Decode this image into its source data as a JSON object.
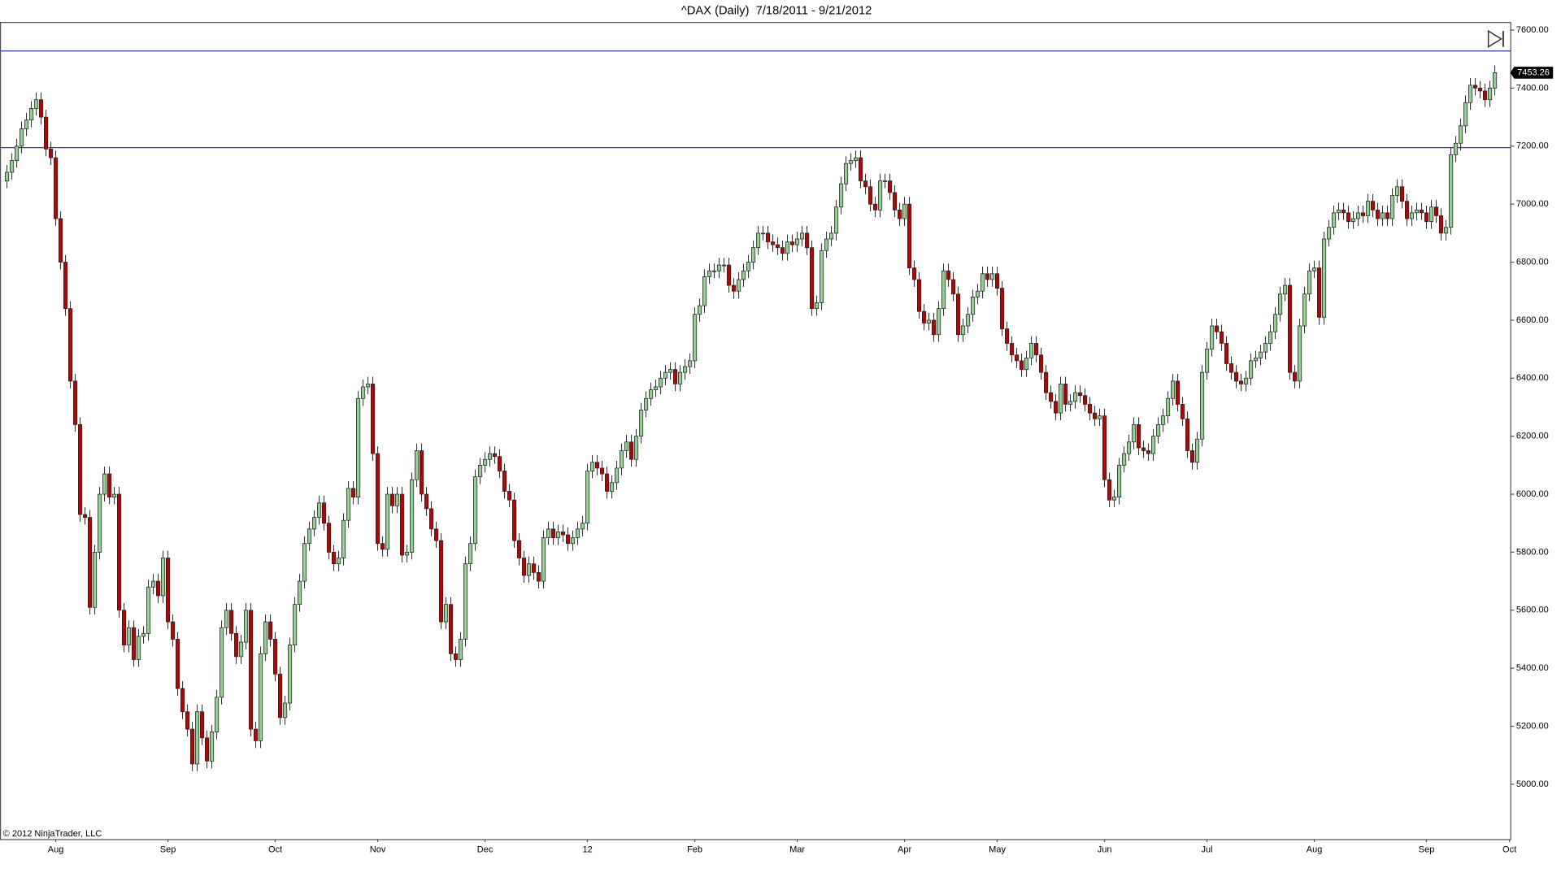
{
  "chart_data": {
    "type": "candlestick",
    "title": "^DAX (Daily)  7/18/2011 - 9/21/2012",
    "copyright": "© 2012 NinjaTrader, LLC",
    "up_color": "#8fd18f",
    "down_color": "#c00000",
    "hline_color": "#3333cc",
    "hlines": [
      7528,
      7195
    ],
    "ylim": [
      4811,
      7628
    ],
    "yticks": [
      {
        "value": 5000,
        "label": "5000.00"
      },
      {
        "value": 5200,
        "label": "5200.00"
      },
      {
        "value": 5400,
        "label": "5400.00"
      },
      {
        "value": 5600,
        "label": "5600.00"
      },
      {
        "value": 5800,
        "label": "5800.00"
      },
      {
        "value": 6000,
        "label": "6000.00"
      },
      {
        "value": 6200,
        "label": "6200.00"
      },
      {
        "value": 6400,
        "label": "6400.00"
      },
      {
        "value": 6600,
        "label": "6600.00"
      },
      {
        "value": 6800,
        "label": "6800.00"
      },
      {
        "value": 7000,
        "label": "7000.00"
      },
      {
        "value": 7200,
        "label": "7200.00"
      },
      {
        "value": 7400,
        "label": "7400.00"
      },
      {
        "value": 7600,
        "label": "7600.00"
      }
    ],
    "categories": [
      null,
      null,
      null,
      null,
      null,
      null,
      null,
      null,
      null,
      null,
      "Aug",
      null,
      null,
      null,
      null,
      null,
      null,
      null,
      null,
      null,
      null,
      null,
      null,
      null,
      null,
      null,
      null,
      null,
      null,
      null,
      null,
      null,
      null,
      "Sep",
      null,
      null,
      null,
      null,
      null,
      null,
      null,
      null,
      null,
      null,
      null,
      null,
      null,
      null,
      null,
      null,
      null,
      null,
      null,
      null,
      null,
      "Oct",
      null,
      null,
      null,
      null,
      null,
      null,
      null,
      null,
      null,
      null,
      null,
      null,
      null,
      null,
      null,
      null,
      null,
      null,
      null,
      null,
      "Nov",
      null,
      null,
      null,
      null,
      null,
      null,
      null,
      null,
      null,
      null,
      null,
      null,
      null,
      null,
      null,
      null,
      null,
      null,
      null,
      null,
      null,
      "Dec",
      null,
      null,
      null,
      null,
      null,
      null,
      null,
      null,
      null,
      null,
      null,
      null,
      null,
      null,
      null,
      null,
      null,
      null,
      null,
      null,
      "12",
      null,
      null,
      null,
      null,
      null,
      null,
      null,
      null,
      null,
      null,
      null,
      null,
      null,
      null,
      null,
      null,
      null,
      null,
      null,
      null,
      null,
      "Feb",
      null,
      null,
      null,
      null,
      null,
      null,
      null,
      null,
      null,
      null,
      null,
      null,
      null,
      null,
      null,
      null,
      null,
      null,
      null,
      null,
      "Mar",
      null,
      null,
      null,
      null,
      null,
      null,
      null,
      null,
      null,
      null,
      null,
      null,
      null,
      null,
      null,
      null,
      null,
      null,
      null,
      null,
      null,
      "Apr",
      null,
      null,
      null,
      null,
      null,
      null,
      null,
      null,
      null,
      null,
      null,
      null,
      null,
      null,
      null,
      null,
      null,
      null,
      "May",
      null,
      null,
      null,
      null,
      null,
      null,
      null,
      null,
      null,
      null,
      null,
      null,
      null,
      null,
      null,
      null,
      null,
      null,
      null,
      null,
      null,
      "Jun",
      null,
      null,
      null,
      null,
      null,
      null,
      null,
      null,
      null,
      null,
      null,
      null,
      null,
      null,
      null,
      null,
      null,
      null,
      null,
      null,
      "Jul",
      null,
      null,
      null,
      null,
      null,
      null,
      null,
      null,
      null,
      null,
      null,
      null,
      null,
      null,
      null,
      null,
      null,
      null,
      null,
      null,
      null,
      "Aug",
      null,
      null,
      null,
      null,
      null,
      null,
      null,
      null,
      null,
      null,
      null,
      null,
      null,
      null,
      null,
      null,
      null,
      null,
      null,
      null,
      null,
      null,
      "Sep",
      null,
      null,
      null,
      null,
      null,
      null,
      null,
      null,
      null,
      null,
      null,
      null,
      null,
      null,
      null,
      null,
      "Oct"
    ],
    "open": [
      7080,
      7110,
      7150,
      7200,
      7260,
      7290,
      7330,
      7360,
      7300,
      7190,
      7160,
      6950,
      6800,
      6640,
      6390,
      6240,
      5930,
      5920,
      5610,
      5800,
      6000,
      6070,
      5990,
      6000,
      5600,
      5480,
      5540,
      5430,
      5510,
      5520,
      5680,
      5700,
      5650,
      5780,
      5560,
      5500,
      5330,
      5250,
      5190,
      5070,
      5250,
      5160,
      5080,
      5180,
      5300,
      5540,
      5600,
      5520,
      5440,
      5490,
      5600,
      5190,
      5150,
      5450,
      5560,
      5500,
      5380,
      5230,
      5280,
      5480,
      5620,
      5700,
      5830,
      5880,
      5920,
      5970,
      5900,
      5800,
      5760,
      5780,
      5910,
      6020,
      5990,
      6330,
      6370,
      6380,
      6140,
      5830,
      5810,
      6000,
      5960,
      6000,
      5790,
      5800,
      6050,
      6150,
      6000,
      5950,
      5880,
      5840,
      5560,
      5620,
      5450,
      5430,
      5500,
      5760,
      5830,
      6060,
      6100,
      6120,
      6140,
      6130,
      6080,
      6010,
      5980,
      5840,
      5780,
      5720,
      5760,
      5730,
      5700,
      5850,
      5880,
      5850,
      5870,
      5860,
      5830,
      5850,
      5880,
      5900,
      6080,
      6110,
      6090,
      6070,
      6010,
      6040,
      6090,
      6150,
      6180,
      6120,
      6200,
      6290,
      6330,
      6360,
      6370,
      6400,
      6420,
      6430,
      6380,
      6420,
      6440,
      6460,
      6620,
      6650,
      6750,
      6770,
      6770,
      6790,
      6790,
      6720,
      6700,
      6740,
      6770,
      6800,
      6850,
      6900,
      6900,
      6870,
      6860,
      6850,
      6830,
      6870,
      6860,
      6880,
      6900,
      6850,
      6640,
      6660,
      6840,
      6880,
      6900,
      6990,
      7070,
      7140,
      7150,
      7160,
      7080,
      7060,
      7000,
      6980,
      7080,
      7080,
      7040,
      6980,
      6950,
      7000,
      6780,
      6740,
      6630,
      6590,
      6600,
      6550,
      6640,
      6770,
      6740,
      6690,
      6550,
      6580,
      6620,
      6680,
      6700,
      6760,
      6740,
      6760,
      6710,
      6570,
      6520,
      6480,
      6460,
      6430,
      6470,
      6520,
      6480,
      6420,
      6350,
      6320,
      6280,
      6380,
      6310,
      6320,
      6350,
      6340,
      6310,
      6280,
      6260,
      6270,
      6050,
      5980,
      5990,
      6100,
      6140,
      6180,
      6240,
      6160,
      6150,
      6140,
      6200,
      6240,
      6270,
      6330,
      6390,
      6310,
      6260,
      6150,
      6110,
      6190,
      6420,
      6500,
      6580,
      6560,
      6520,
      6450,
      6420,
      6390,
      6380,
      6400,
      6460,
      6470,
      6490,
      6520,
      6560,
      6620,
      6690,
      6720,
      6420,
      6390,
      6580,
      6690,
      6770,
      6780,
      6610,
      6880,
      6920,
      6970,
      6980,
      6970,
      6940,
      6950,
      6970,
      6960,
      7010,
      6980,
      6950,
      6970,
      6950,
      7030,
      7060,
      7010,
      6950,
      6970,
      6980,
      6970,
      6940,
      6990,
      6960,
      6900,
      6920,
      7170,
      7210,
      7270,
      7350,
      7410,
      7400,
      7390,
      7360,
      7400,
      null,
      null,
      null
    ],
    "high": [
      7135,
      7175,
      7225,
      7285,
      7315,
      7355,
      7385,
      7385,
      7325,
      7215,
      7185,
      6975,
      6825,
      6665,
      6415,
      6265,
      5955,
      5945,
      5825,
      6025,
      6095,
      6095,
      6025,
      6025,
      5625,
      5565,
      5565,
      5535,
      5545,
      5705,
      5725,
      5725,
      5805,
      5805,
      5585,
      5525,
      5355,
      5275,
      5215,
      5275,
      5275,
      5185,
      5205,
      5325,
      5565,
      5625,
      5625,
      5545,
      5515,
      5625,
      5625,
      5215,
      5475,
      5585,
      5585,
      5525,
      5405,
      5305,
      5505,
      5645,
      5725,
      5855,
      5905,
      5945,
      5995,
      5995,
      5925,
      5825,
      5805,
      5935,
      6045,
      6045,
      6355,
      6395,
      6405,
      6405,
      6165,
      5855,
      6025,
      6025,
      6025,
      6025,
      5825,
      6075,
      6175,
      6175,
      6025,
      5975,
      5905,
      5865,
      5645,
      5645,
      5475,
      5525,
      5785,
      5855,
      6085,
      6125,
      6145,
      6165,
      6165,
      6155,
      6105,
      6035,
      6005,
      5865,
      5805,
      5785,
      5785,
      5755,
      5875,
      5905,
      5905,
      5895,
      5895,
      5885,
      5875,
      5905,
      5925,
      6105,
      6135,
      6135,
      6115,
      6095,
      6065,
      6115,
      6175,
      6205,
      6205,
      6225,
      6315,
      6355,
      6385,
      6395,
      6425,
      6445,
      6455,
      6455,
      6445,
      6465,
      6485,
      6645,
      6675,
      6775,
      6795,
      6795,
      6815,
      6815,
      6815,
      6745,
      6765,
      6795,
      6825,
      6875,
      6925,
      6925,
      6925,
      6895,
      6885,
      6875,
      6895,
      6895,
      6905,
      6925,
      6925,
      6875,
      6685,
      6865,
      6905,
      6925,
      7015,
      7095,
      7165,
      7175,
      7185,
      7185,
      7105,
      7085,
      7025,
      7105,
      7105,
      7105,
      7065,
      7005,
      7025,
      7025,
      6805,
      6765,
      6655,
      6625,
      6625,
      6665,
      6795,
      6795,
      6765,
      6715,
      6605,
      6645,
      6705,
      6725,
      6785,
      6785,
      6785,
      6785,
      6735,
      6595,
      6545,
      6505,
      6485,
      6495,
      6545,
      6545,
      6505,
      6445,
      6375,
      6345,
      6405,
      6405,
      6345,
      6375,
      6375,
      6365,
      6335,
      6305,
      6295,
      6295,
      6075,
      6015,
      6125,
      6165,
      6205,
      6265,
      6265,
      6185,
      6175,
      6225,
      6265,
      6295,
      6355,
      6415,
      6415,
      6335,
      6285,
      6175,
      6215,
      6445,
      6525,
      6605,
      6605,
      6585,
      6545,
      6475,
      6445,
      6415,
      6425,
      6485,
      6495,
      6515,
      6545,
      6585,
      6645,
      6715,
      6745,
      6745,
      6445,
      6605,
      6715,
      6795,
      6805,
      6805,
      6905,
      6945,
      6995,
      7005,
      7005,
      6995,
      6975,
      6995,
      6995,
      7035,
      7035,
      7005,
      6995,
      6995,
      7055,
      7085,
      7085,
      7035,
      6995,
      7005,
      7005,
      6995,
      7015,
      7015,
      6985,
      6945,
      7195,
      7235,
      7295,
      7375,
      7435,
      7435,
      7425,
      7415,
      7425,
      7478,
      null,
      null,
      null
    ],
    "low": [
      7055,
      7085,
      7125,
      7175,
      7235,
      7265,
      7305,
      7275,
      7165,
      7135,
      6925,
      6775,
      6615,
      6365,
      6215,
      5905,
      5895,
      5585,
      5585,
      5775,
      5975,
      5965,
      5965,
      5575,
      5455,
      5455,
      5405,
      5405,
      5485,
      5495,
      5655,
      5625,
      5625,
      5535,
      5475,
      5305,
      5225,
      5165,
      5045,
      5045,
      5135,
      5055,
      5055,
      5155,
      5275,
      5515,
      5495,
      5415,
      5415,
      5465,
      5165,
      5125,
      5125,
      5425,
      5475,
      5355,
      5205,
      5205,
      5255,
      5455,
      5595,
      5675,
      5805,
      5855,
      5895,
      5875,
      5775,
      5735,
      5735,
      5755,
      5885,
      5965,
      5965,
      6305,
      6345,
      6115,
      5805,
      5785,
      5785,
      5935,
      5935,
      5765,
      5765,
      5775,
      6025,
      5975,
      5925,
      5855,
      5815,
      5535,
      5535,
      5425,
      5405,
      5405,
      5475,
      5735,
      5805,
      6035,
      6075,
      6095,
      6105,
      6055,
      5985,
      5955,
      5815,
      5755,
      5695,
      5695,
      5705,
      5675,
      5675,
      5825,
      5825,
      5825,
      5835,
      5805,
      5805,
      5825,
      5855,
      5875,
      6055,
      6065,
      6045,
      5985,
      5985,
      6015,
      6065,
      6125,
      6095,
      6095,
      6175,
      6265,
      6305,
      6335,
      6345,
      6375,
      6395,
      6355,
      6355,
      6395,
      6415,
      6435,
      6595,
      6625,
      6725,
      6745,
      6745,
      6765,
      6695,
      6675,
      6675,
      6715,
      6745,
      6775,
      6825,
      6875,
      6845,
      6835,
      6825,
      6805,
      6805,
      6835,
      6835,
      6855,
      6825,
      6615,
      6615,
      6635,
      6815,
      6855,
      6875,
      6965,
      7045,
      7115,
      7125,
      7055,
      7035,
      6975,
      6955,
      6955,
      7055,
      7015,
      6955,
      6925,
      6925,
      6755,
      6715,
      6605,
      6565,
      6565,
      6525,
      6525,
      6615,
      6715,
      6665,
      6525,
      6525,
      6555,
      6595,
      6655,
      6675,
      6715,
      6715,
      6685,
      6545,
      6495,
      6455,
      6435,
      6405,
      6405,
      6445,
      6455,
      6395,
      6325,
      6295,
      6255,
      6255,
      6285,
      6285,
      6295,
      6315,
      6285,
      6255,
      6235,
      6235,
      6025,
      5955,
      5955,
      5965,
      6075,
      6115,
      6155,
      6135,
      6125,
      6115,
      6115,
      6175,
      6215,
      6245,
      6305,
      6285,
      6235,
      6125,
      6085,
      6085,
      6165,
      6395,
      6475,
      6535,
      6495,
      6425,
      6395,
      6365,
      6355,
      6355,
      6375,
      6435,
      6445,
      6465,
      6495,
      6535,
      6595,
      6665,
      6395,
      6365,
      6365,
      6555,
      6665,
      6745,
      6585,
      6585,
      6855,
      6895,
      6945,
      6945,
      6915,
      6915,
      6925,
      6935,
      6935,
      6955,
      6925,
      6925,
      6925,
      6925,
      7005,
      6985,
      6925,
      6925,
      6945,
      6945,
      6915,
      6915,
      6935,
      6875,
      6875,
      6895,
      7145,
      7185,
      7245,
      7325,
      7375,
      7365,
      7335,
      7335,
      7375,
      null,
      null,
      null
    ],
    "close": [
      7110,
      7150,
      7200,
      7260,
      7290,
      7330,
      7360,
      7300,
      7190,
      7160,
      6950,
      6800,
      6640,
      6390,
      6240,
      5930,
      5920,
      5610,
      5800,
      6000,
      6070,
      5990,
      6000,
      5600,
      5480,
      5540,
      5430,
      5510,
      5520,
      5680,
      5700,
      5650,
      5780,
      5560,
      5500,
      5330,
      5250,
      5190,
      5070,
      5250,
      5160,
      5080,
      5180,
      5300,
      5540,
      5600,
      5520,
      5440,
      5490,
      5600,
      5190,
      5150,
      5450,
      5560,
      5500,
      5380,
      5230,
      5280,
      5480,
      5620,
      5700,
      5830,
      5880,
      5920,
      5970,
      5900,
      5800,
      5760,
      5780,
      5910,
      6020,
      5990,
      6330,
      6370,
      6380,
      6140,
      5830,
      5810,
      6000,
      5960,
      6000,
      5790,
      5800,
      6050,
      6150,
      6000,
      5950,
      5880,
      5840,
      5560,
      5620,
      5450,
      5430,
      5500,
      5760,
      5830,
      6060,
      6100,
      6120,
      6140,
      6130,
      6080,
      6010,
      5980,
      5840,
      5780,
      5720,
      5760,
      5730,
      5700,
      5850,
      5880,
      5850,
      5870,
      5860,
      5830,
      5850,
      5880,
      5900,
      6080,
      6110,
      6090,
      6070,
      6010,
      6040,
      6090,
      6150,
      6180,
      6120,
      6200,
      6290,
      6330,
      6360,
      6370,
      6400,
      6420,
      6430,
      6380,
      6420,
      6440,
      6460,
      6620,
      6650,
      6750,
      6770,
      6770,
      6790,
      6790,
      6720,
      6700,
      6740,
      6770,
      6800,
      6850,
      6900,
      6900,
      6870,
      6860,
      6850,
      6830,
      6870,
      6860,
      6880,
      6900,
      6850,
      6640,
      6660,
      6840,
      6880,
      6900,
      6990,
      7070,
      7140,
      7150,
      7160,
      7080,
      7060,
      7000,
      6980,
      7080,
      7080,
      7040,
      6980,
      6950,
      7000,
      6780,
      6740,
      6630,
      6590,
      6600,
      6550,
      6640,
      6770,
      6740,
      6690,
      6550,
      6580,
      6620,
      6680,
      6700,
      6760,
      6740,
      6760,
      6710,
      6570,
      6520,
      6480,
      6460,
      6430,
      6470,
      6520,
      6480,
      6420,
      6350,
      6320,
      6280,
      6380,
      6310,
      6320,
      6350,
      6340,
      6310,
      6280,
      6260,
      6270,
      6050,
      5980,
      5990,
      6100,
      6140,
      6180,
      6240,
      6160,
      6150,
      6140,
      6200,
      6240,
      6270,
      6330,
      6390,
      6310,
      6260,
      6150,
      6110,
      6190,
      6420,
      6500,
      6580,
      6560,
      6520,
      6450,
      6420,
      6390,
      6380,
      6400,
      6460,
      6470,
      6490,
      6520,
      6560,
      6620,
      6690,
      6720,
      6420,
      6390,
      6580,
      6690,
      6770,
      6780,
      6610,
      6880,
      6920,
      6970,
      6980,
      6970,
      6940,
      6950,
      6970,
      6960,
      7010,
      6980,
      6950,
      6970,
      6950,
      7030,
      7060,
      7010,
      6950,
      6970,
      6980,
      6970,
      6940,
      6990,
      6960,
      6900,
      6920,
      7170,
      7210,
      7270,
      7350,
      7410,
      7400,
      7390,
      7360,
      7400,
      7453.26,
      null,
      null,
      null
    ]
  }
}
